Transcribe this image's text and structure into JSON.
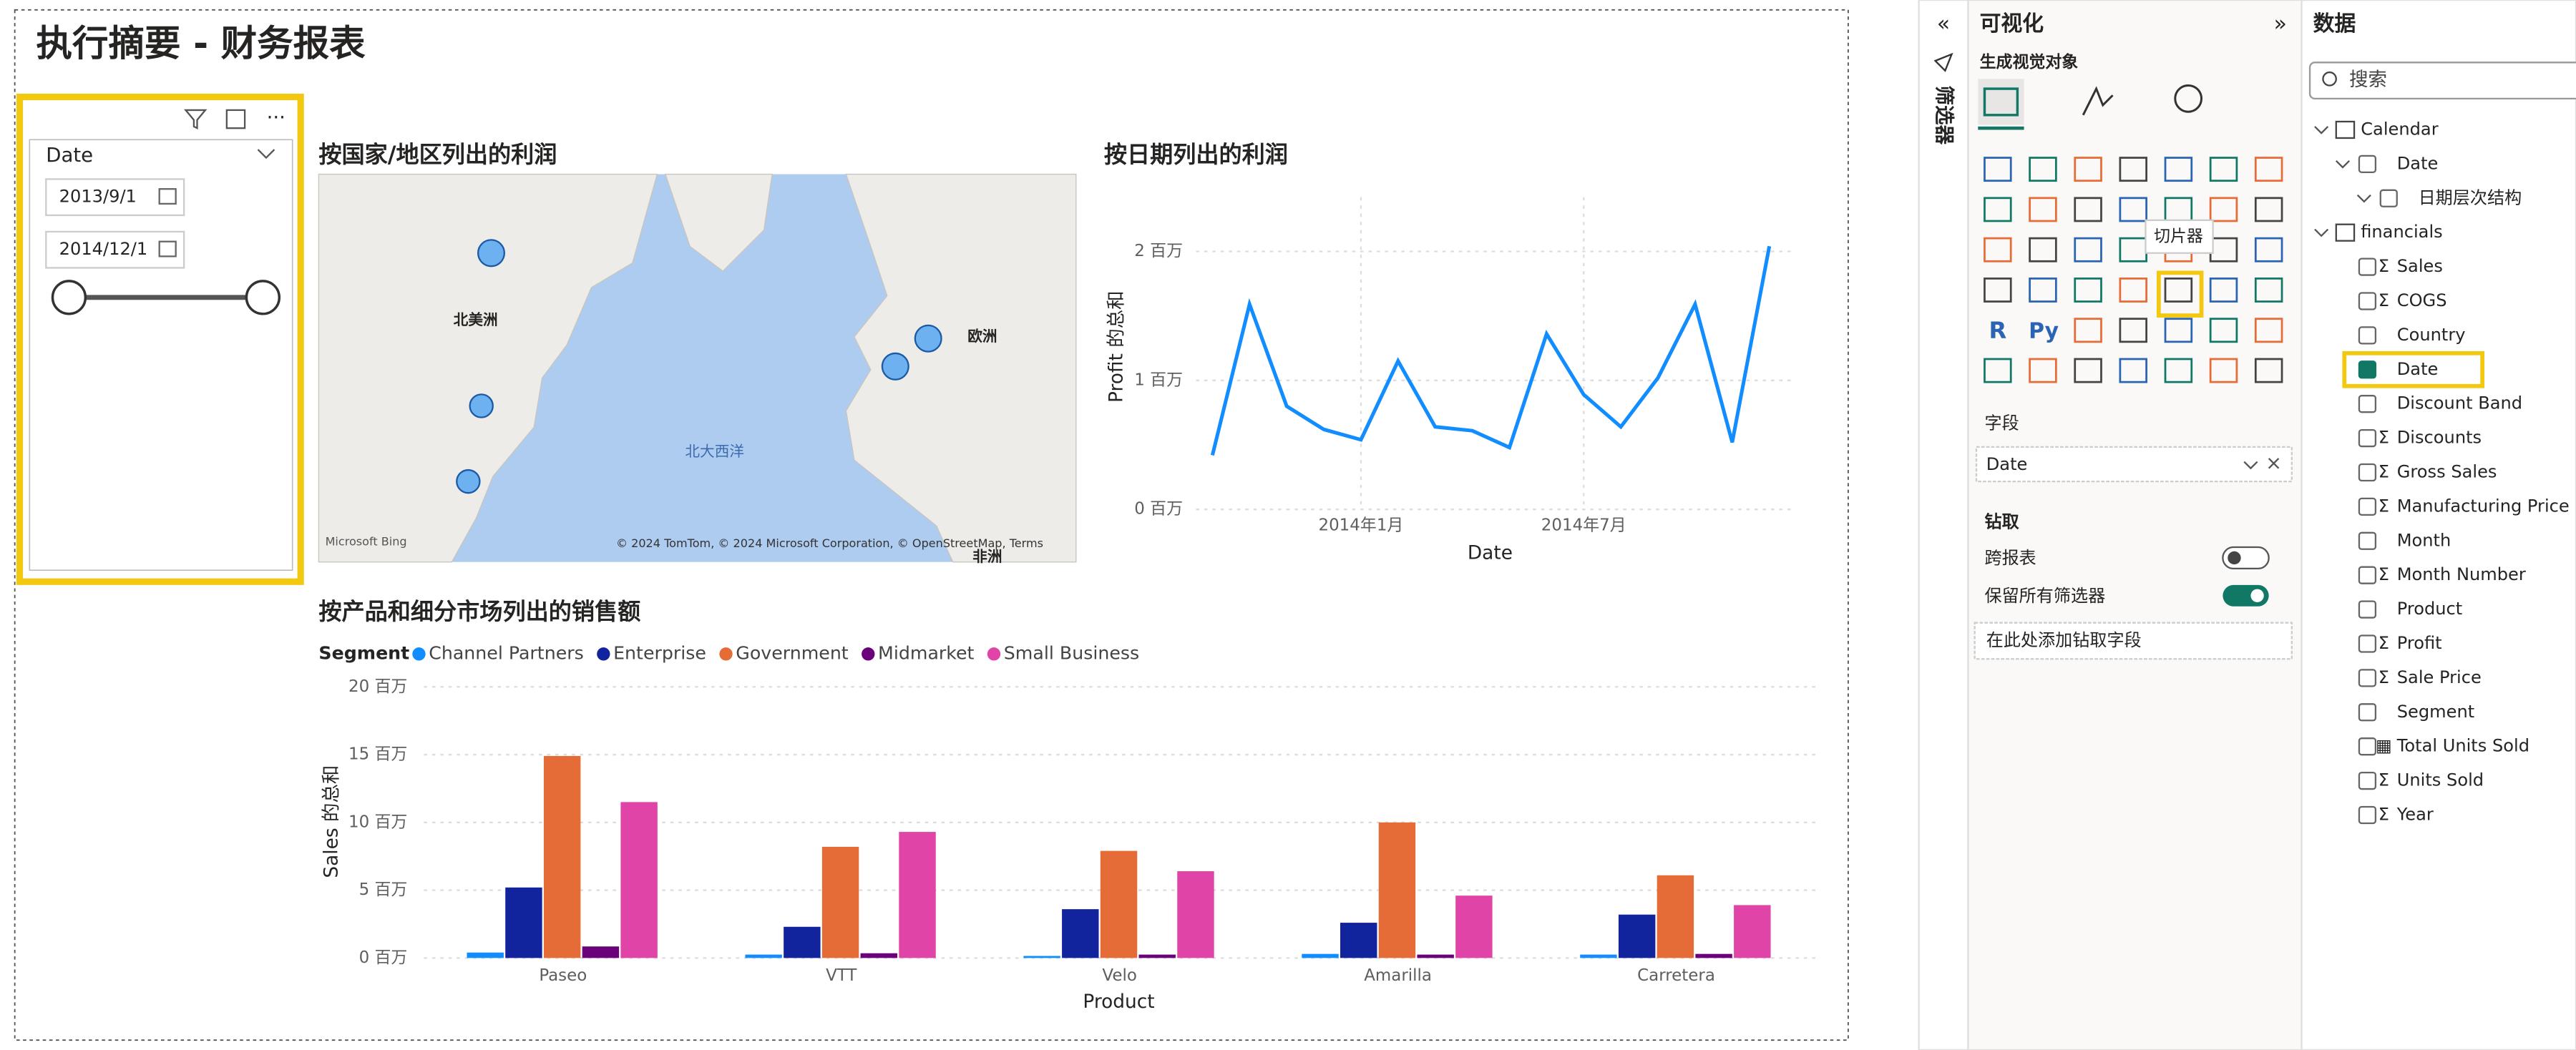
{
  "chart_data": [
    {
      "type": "line",
      "title": "按日期列出的利润",
      "x_label": "Date",
      "y_label": "Profit 的总和",
      "x": [
        "2013-09",
        "2013-10",
        "2013-11",
        "2013-12",
        "2014-01",
        "2014-02",
        "2014-03",
        "2014-04",
        "2014-05",
        "2014-06",
        "2014-07",
        "2014-08",
        "2014-09",
        "2014-10",
        "2014-11",
        "2014-12"
      ],
      "values": [
        0.42,
        1.59,
        0.8,
        0.62,
        0.54,
        1.15,
        0.64,
        0.61,
        0.48,
        1.36,
        0.89,
        0.64,
        1.02,
        1.59,
        0.52,
        2.04
      ],
      "color": "#118DFF",
      "xlim": [
        "2013-09",
        "2014-12"
      ],
      "xticks": [
        {
          "value": "2014-01",
          "label": "2014年1月"
        },
        {
          "value": "2014-07",
          "label": "2014年7月"
        }
      ],
      "ylim": [
        0,
        2.4
      ],
      "yticks": [
        {
          "value": 0,
          "label": "0 百万"
        },
        {
          "value": 1,
          "label": "1 百万"
        },
        {
          "value": 2,
          "label": "2 百万"
        }
      ],
      "grid": true
    },
    {
      "type": "bar",
      "title": "按产品和细分市场列出的销售额",
      "legend_title": "Segment",
      "x_label": "Product",
      "y_label": "Sales 的总和",
      "categories": [
        "Paseo",
        "VTT",
        "Velo",
        "Amarilla",
        "Carretera"
      ],
      "series": [
        {
          "name": "Channel Partners",
          "color": "#118DFF",
          "values": [
            0.4,
            0.25,
            0.15,
            0.3,
            0.25
          ]
        },
        {
          "name": "Enterprise",
          "color": "#12239E",
          "values": [
            5.2,
            2.3,
            3.6,
            2.6,
            3.2
          ]
        },
        {
          "name": "Government",
          "color": "#E66C37",
          "values": [
            14.9,
            8.2,
            7.9,
            10.0,
            6.1
          ]
        },
        {
          "name": "Midmarket",
          "color": "#6B007B",
          "values": [
            0.85,
            0.35,
            0.25,
            0.25,
            0.3
          ]
        },
        {
          "name": "Small Business",
          "color": "#E044A7",
          "values": [
            11.5,
            9.3,
            6.4,
            4.6,
            3.9
          ]
        }
      ],
      "ylim": [
        0,
        20
      ],
      "yticks": [
        {
          "value": 0,
          "label": "0 百万"
        },
        {
          "value": 5,
          "label": "5 百万"
        },
        {
          "value": 10,
          "label": "10 百万"
        },
        {
          "value": 15,
          "label": "15 百万"
        },
        {
          "value": 20,
          "label": "20 百万"
        }
      ],
      "grid": true
    }
  ],
  "report": {
    "title": "执行摘要 - 财务报表",
    "slicer": {
      "field": "Date",
      "start": "2013/9/1",
      "end": "2014/12/1"
    },
    "map": {
      "title": "按国家/地区列出的利润",
      "labels": [
        "北美洲",
        "欧洲",
        "北大西洋",
        "非洲"
      ],
      "logo": "Microsoft Bing",
      "attribution": "© 2024 TomTom, © 2024 Microsoft Corporation, © OpenStreetMap, Terms"
    }
  },
  "filters_pane": {
    "title": "筛选器"
  },
  "visualizations_pane": {
    "title": "可视化",
    "subtitle": "生成视觉对象",
    "tooltip": "切片器",
    "icon_texts": [
      "R",
      "Py"
    ],
    "fields_label": "字段",
    "field_value": "Date",
    "drill_title": "钻取",
    "cross_report": "跨报表",
    "keep_filters": "保留所有筛选器",
    "drill_placeholder": "在此处添加钻取字段"
  },
  "data_pane": {
    "title": "数据",
    "search": "搜索",
    "tables": [
      {
        "name": "Calendar",
        "fields": [
          {
            "name": "Date",
            "children": [
              {
                "name": "日期层次结构"
              }
            ]
          }
        ]
      },
      {
        "name": "financials",
        "fields": [
          {
            "name": "Sales",
            "icon": "Σ"
          },
          {
            "name": "COGS",
            "icon": "Σ"
          },
          {
            "name": "Country"
          },
          {
            "name": "Date",
            "checked": true
          },
          {
            "name": "Discount Band"
          },
          {
            "name": "Discounts",
            "icon": "Σ"
          },
          {
            "name": "Gross Sales",
            "icon": "Σ"
          },
          {
            "name": "Manufacturing Price",
            "icon": "Σ"
          },
          {
            "name": "Month"
          },
          {
            "name": "Month Number",
            "icon": "Σ"
          },
          {
            "name": "Product"
          },
          {
            "name": "Profit",
            "icon": "Σ"
          },
          {
            "name": "Sale Price",
            "icon": "Σ"
          },
          {
            "name": "Segment"
          },
          {
            "name": "Total Units Sold",
            "icon": "▦"
          },
          {
            "name": "Units Sold",
            "icon": "Σ"
          },
          {
            "name": "Year",
            "icon": "Σ"
          }
        ]
      }
    ]
  }
}
